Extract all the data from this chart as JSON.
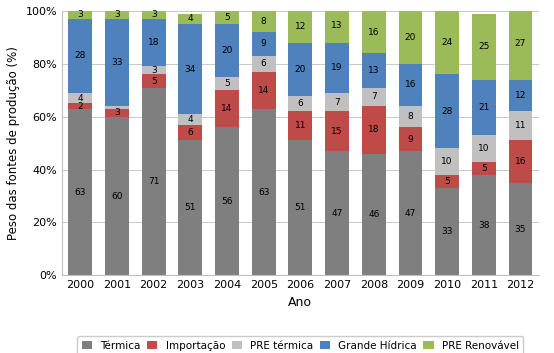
{
  "years": [
    2000,
    2001,
    2002,
    2003,
    2004,
    2005,
    2006,
    2007,
    2008,
    2009,
    2010,
    2011,
    2012
  ],
  "termica": [
    63,
    60,
    71,
    51,
    56,
    63,
    51,
    47,
    46,
    47,
    33,
    38,
    35
  ],
  "importacao": [
    2,
    3,
    5,
    6,
    14,
    14,
    11,
    15,
    18,
    9,
    5,
    5,
    16
  ],
  "pre_termica": [
    4,
    1,
    3,
    4,
    5,
    6,
    6,
    7,
    7,
    8,
    10,
    10,
    11
  ],
  "grande_hidrica": [
    28,
    33,
    18,
    34,
    20,
    9,
    20,
    19,
    13,
    16,
    28,
    21,
    12
  ],
  "pre_renovavel": [
    3,
    3,
    3,
    4,
    5,
    8,
    12,
    13,
    16,
    20,
    24,
    25,
    27
  ],
  "colors": {
    "termica": "#7F7F7F",
    "importacao": "#BE4B48",
    "pre_termica": "#C0C0C0",
    "grande_hidrica": "#4F81BD",
    "pre_renovavel": "#9BBB59"
  },
  "legend_labels": [
    "Térmica",
    "Importação",
    "PRE térmica",
    "Grande Hídrica",
    "PRE Renovável"
  ],
  "xlabel": "Ano",
  "ylabel": "Peso das fontes de produção (%)",
  "yticks": [
    0,
    20,
    40,
    60,
    80,
    100
  ],
  "yticklabels": [
    "0%",
    "20%",
    "40%",
    "60%",
    "80%",
    "100%"
  ]
}
